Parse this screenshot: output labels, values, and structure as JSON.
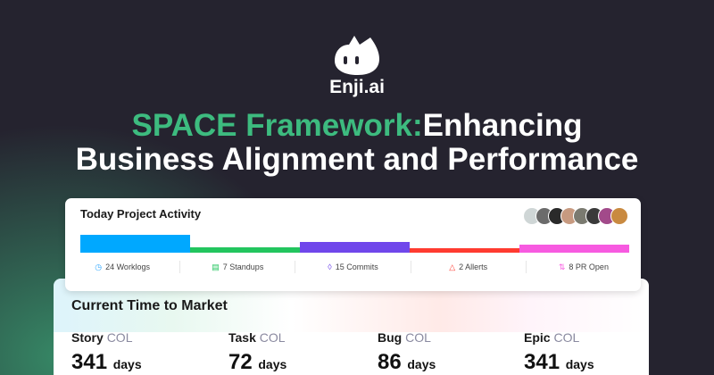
{
  "brand": {
    "name": "Enji.ai"
  },
  "headline": {
    "highlight": "SPACE Framework:",
    "rest1": "Enhancing",
    "line2": "Business Alignment and Performance"
  },
  "activity": {
    "title": "Today Project Activity",
    "avatar_colors": [
      "#cfd6d6",
      "#6b6b6b",
      "#2a2a2a",
      "#c79a80",
      "#7a7a70",
      "#3a3a3a",
      "#a24a8a",
      "#c98a40"
    ],
    "bars": [
      {
        "color": "#00a8ff",
        "level": 1.0
      },
      {
        "color": "#22c55e",
        "level": 0.2
      },
      {
        "color": "#7047eb",
        "level": 0.55
      },
      {
        "color": "#ff3b30",
        "level": 0.1
      },
      {
        "color": "#f75ae0",
        "level": 0.35
      }
    ],
    "stats": [
      {
        "icon": "clock-icon",
        "label": "24 Worklogs",
        "color": "#2aa5ff"
      },
      {
        "icon": "chat-icon",
        "label": "7 Standups",
        "color": "#22c55e"
      },
      {
        "icon": "commit-icon",
        "label": "15 Commits",
        "color": "#7047eb"
      },
      {
        "icon": "alert-icon",
        "label": "2 Allerts",
        "color": "#ff3b30"
      },
      {
        "icon": "pull-request-icon",
        "label": "8 PR Open",
        "color": "#f75ae0"
      }
    ]
  },
  "market": {
    "title": "Current Time to Market",
    "metrics": [
      {
        "name": "Story",
        "suffix": "COL",
        "value": "341",
        "unit": "days"
      },
      {
        "name": "Task",
        "suffix": "COL",
        "value": "72",
        "unit": "days"
      },
      {
        "name": "Bug",
        "suffix": "COL",
        "value": "86",
        "unit": "days"
      },
      {
        "name": "Epic",
        "suffix": "COL",
        "value": "341",
        "unit": "days"
      }
    ]
  }
}
